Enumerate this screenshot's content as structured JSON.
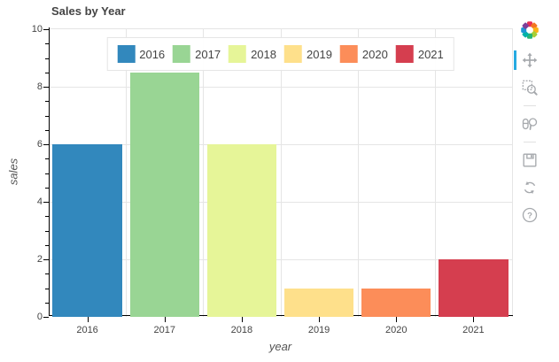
{
  "chart_data": {
    "type": "bar",
    "title": "Sales by Year",
    "xlabel": "year",
    "ylabel": "sales",
    "categories": [
      "2016",
      "2017",
      "2018",
      "2019",
      "2020",
      "2021"
    ],
    "values": [
      6,
      8.5,
      6,
      1,
      1,
      2
    ],
    "bar_colors": [
      "#3288bd",
      "#99d594",
      "#e6f598",
      "#fee08b",
      "#fc8d59",
      "#d53e4f"
    ],
    "ylim": [
      0,
      10
    ],
    "yticks": [
      0,
      2,
      4,
      6,
      8,
      10
    ],
    "minor_tick_step": 0.5,
    "grid": true,
    "legend_position": "top-center",
    "legend_entries": [
      "2016",
      "2017",
      "2018",
      "2019",
      "2020",
      "2021"
    ]
  },
  "colors": {
    "grid": "#e5e5e5",
    "axis": "#000000",
    "tick_label": "#444444",
    "title": "#444444",
    "axis_label": "#555555",
    "toolbar_icon": "#a6a9ad",
    "active_tool_highlight": "#26aae1",
    "legend_border": "#e5e5e5",
    "legend_background": "#ffffff"
  },
  "toolbar": {
    "logo": "bokeh-logo",
    "tools": [
      {
        "name": "pan",
        "icon": "pan-icon",
        "active": true
      },
      {
        "name": "box-zoom",
        "icon": "box-zoom-icon",
        "active": false
      },
      {
        "name": "wheel-zoom",
        "icon": "wheel-zoom-icon",
        "active": false
      },
      {
        "name": "save",
        "icon": "save-icon",
        "active": false
      },
      {
        "name": "reset",
        "icon": "reset-icon",
        "active": false
      },
      {
        "name": "help",
        "icon": "help-icon",
        "active": false
      }
    ]
  }
}
